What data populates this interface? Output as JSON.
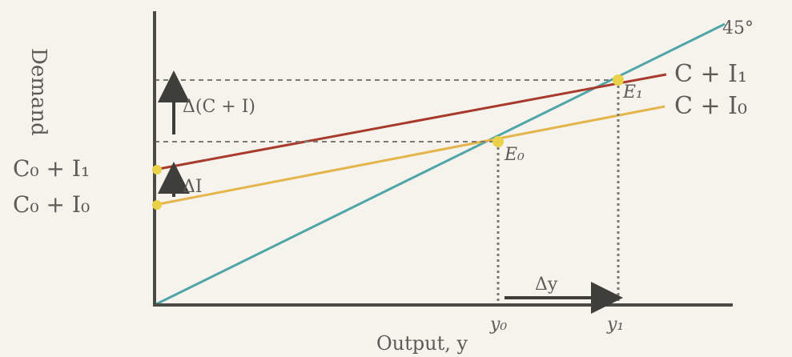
{
  "labels": {
    "y_axis": "Demand",
    "x_axis": "Output, y",
    "angle": "45°",
    "line_high": "C + I₁",
    "line_low": "C + I₀",
    "intercept_high": "C₀ + I₁",
    "intercept_low": "C₀ + I₀",
    "eq_high": "E₁",
    "eq_low": "E₀",
    "delta_demand": "Δ(C + I)",
    "delta_invest": "ΔI",
    "delta_output": "Δy",
    "y0": "y₀",
    "y1": "y₁"
  },
  "colors": {
    "background": "#f6f3ec",
    "axis": "#4a4a46",
    "forty_five": "#4fa5a8",
    "line_high": "#a83a2c",
    "line_low": "#e3b54a",
    "points": "#e9d24a",
    "guides": "#7a7a74",
    "text": "#5c5b57"
  }
}
